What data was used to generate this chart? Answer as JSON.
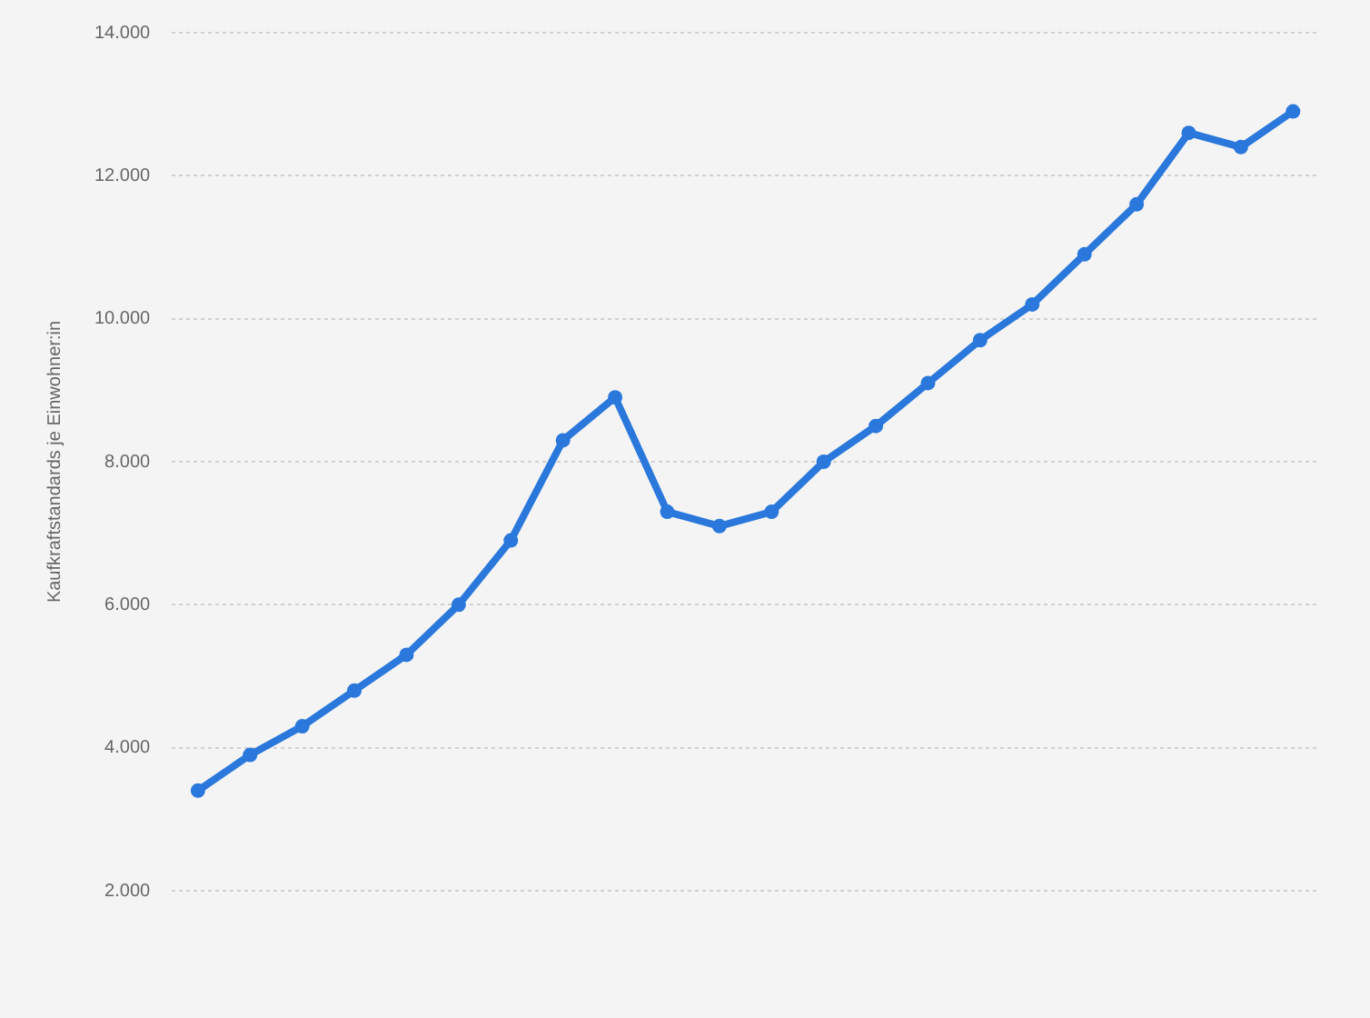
{
  "chart_data": {
    "type": "line",
    "ylabel": "Kaufkraftstandards je Einwohner:in",
    "categories": [
      null,
      null,
      null,
      null,
      null,
      null,
      null,
      null,
      null,
      null,
      null,
      null,
      null,
      null,
      null,
      null,
      null,
      null,
      null,
      null,
      null,
      null
    ],
    "series": [
      {
        "color": "#2a78dc",
        "values": [
          3400,
          3900,
          4300,
          4800,
          5300,
          6000,
          6900,
          8300,
          8900,
          7300,
          7100,
          7300,
          8000,
          8500,
          9100,
          9700,
          10200,
          10900,
          11600,
          12600,
          12400,
          12900
        ]
      }
    ],
    "ylim": [
      2000,
      14000
    ],
    "yticks": [
      {
        "value": 2000,
        "label": "2.000"
      },
      {
        "value": 4000,
        "label": "4.000"
      },
      {
        "value": 6000,
        "label": "6.000"
      },
      {
        "value": 8000,
        "label": "8.000"
      },
      {
        "value": 10000,
        "label": "10.000"
      },
      {
        "value": 12000,
        "label": "12.000"
      },
      {
        "value": 14000,
        "label": "14.000"
      }
    ],
    "grid": "y",
    "tick_labels": "y",
    "marker": "circle",
    "line_style": "solid",
    "legend": false
  }
}
